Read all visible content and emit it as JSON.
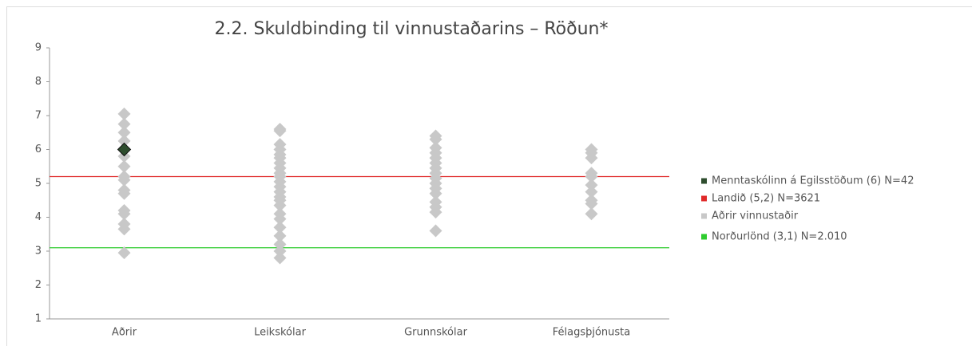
{
  "chart_data": {
    "type": "strip",
    "title": "2.2. Skuldbinding til vinnustaðarins – Röðun*",
    "categories": [
      "Aðrir",
      "Leikskólar",
      "Grunnskólar",
      "Félagsþjónusta"
    ],
    "ylim": [
      1,
      9
    ],
    "yticks": [
      1,
      2,
      3,
      4,
      5,
      6,
      7,
      8,
      9
    ],
    "series": [
      {
        "name": "Menntaskólinn á Egilsstöðum (6) N=42",
        "color": "#2e4d2e",
        "values": [
          6,
          null,
          null,
          null
        ]
      },
      {
        "name": "Landið (5,2) N=3621",
        "color": "#e02a2a",
        "value": 5.2
      },
      {
        "name": "Aðrir vinnustaðir",
        "color": "#c8c8c8",
        "values": [
          [
            7.05,
            6.75,
            6.5,
            6.25,
            6.0,
            5.8,
            5.5,
            5.2,
            5.1,
            4.8,
            4.7,
            4.2,
            4.1,
            3.8,
            3.65,
            2.95
          ],
          [
            6.6,
            6.55,
            6.15,
            6.0,
            5.85,
            5.75,
            5.6,
            5.45,
            5.3,
            5.2,
            5.05,
            4.9,
            4.75,
            4.6,
            4.5,
            4.35,
            4.1,
            3.95,
            3.7,
            3.45,
            3.2,
            3.0,
            2.8
          ],
          [
            6.4,
            6.3,
            6.05,
            5.9,
            5.75,
            5.6,
            5.45,
            5.3,
            5.15,
            5.0,
            4.85,
            4.7,
            4.45,
            4.3,
            4.15,
            3.6
          ],
          [
            6.0,
            5.9,
            5.75,
            5.3,
            5.2,
            4.95,
            4.75,
            4.5,
            4.4,
            4.1
          ]
        ]
      },
      {
        "name": "Norðurlönd (3,1) N=2.010",
        "color": "#2ecc2e",
        "value": 3.1
      }
    ]
  }
}
